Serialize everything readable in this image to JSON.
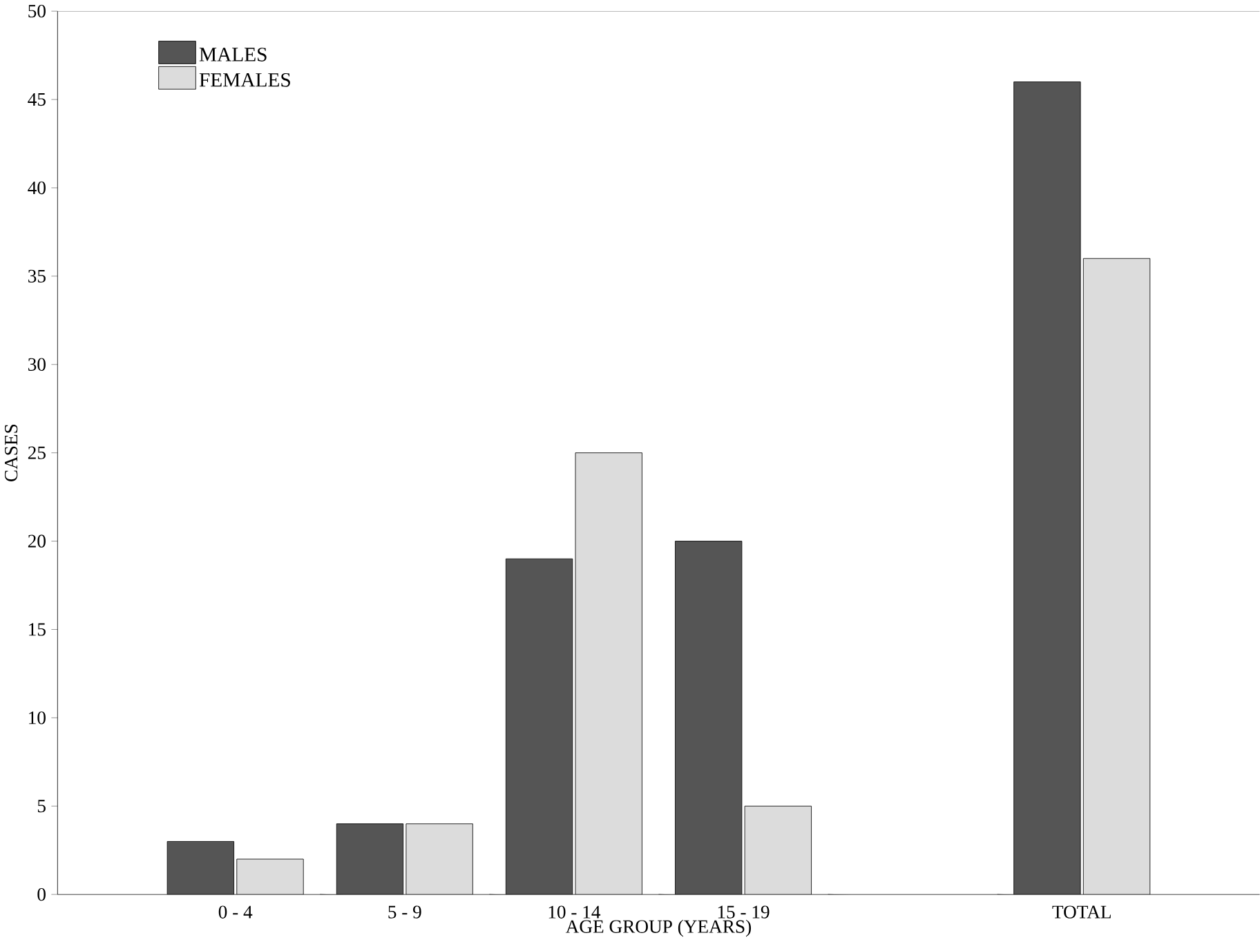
{
  "chart_data": {
    "type": "bar",
    "xlabel": "AGE GROUP (YEARS)",
    "ylabel": "CASES",
    "categories": [
      "0 - 4",
      "5 - 9",
      "10 - 14",
      "15 - 19",
      null,
      "TOTAL"
    ],
    "series": [
      {
        "name": "MALES",
        "color": "#555555",
        "values": [
          3,
          4,
          19,
          20,
          null,
          46
        ]
      },
      {
        "name": "FEMALES",
        "color": "#dcdcdc",
        "values": [
          2,
          4,
          25,
          5,
          null,
          36
        ]
      }
    ],
    "ylim": [
      0,
      50
    ],
    "yticks": [
      0,
      5,
      10,
      15,
      20,
      25,
      30,
      35,
      40,
      45,
      50
    ],
    "legend": "top left",
    "grid": false
  }
}
